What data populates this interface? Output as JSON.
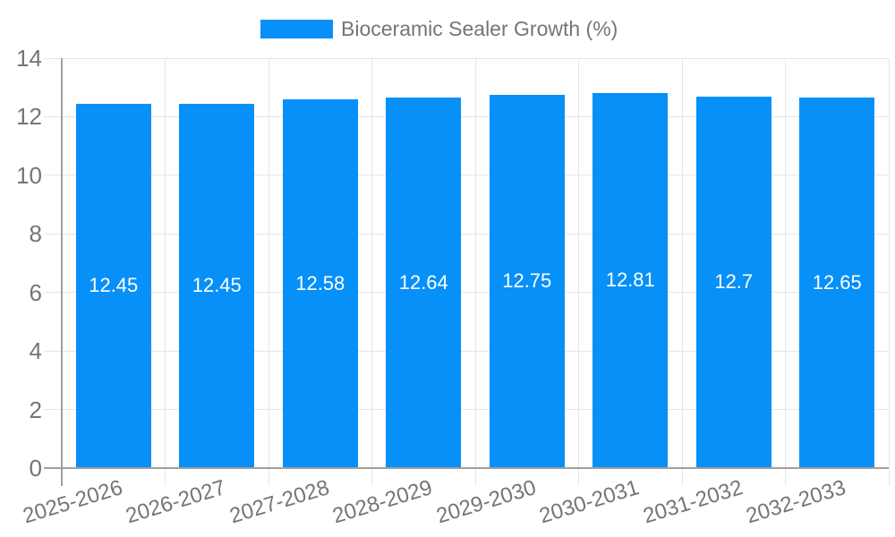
{
  "legend": {
    "label": "Bioceramic Sealer Growth (%)"
  },
  "chart_data": {
    "type": "bar",
    "title": "",
    "xlabel": "",
    "ylabel": "",
    "categories": [
      "2025-2026",
      "2026-2027",
      "2027-2028",
      "2028-2029",
      "2029-2030",
      "2030-2031",
      "2031-2032",
      "2032-2033"
    ],
    "series": [
      {
        "name": "Bioceramic Sealer Growth (%)",
        "color": "#0690f8",
        "values": [
          12.45,
          12.45,
          12.58,
          12.64,
          12.75,
          12.81,
          12.7,
          12.65
        ]
      }
    ],
    "value_labels_visible": true,
    "ylim": [
      0,
      14
    ],
    "yticks": [
      0,
      2,
      4,
      6,
      8,
      10,
      12,
      14
    ],
    "grid": true,
    "legend_position": "top-center",
    "x_label_rotation_deg": -17,
    "colors": {
      "bar": "#0690f8",
      "bar_label_text": "#ffffff",
      "axis_text": "#757575",
      "grid_line": "#e6e6e6",
      "axis_line": "#a0a0a0",
      "background": "#ffffff"
    }
  }
}
